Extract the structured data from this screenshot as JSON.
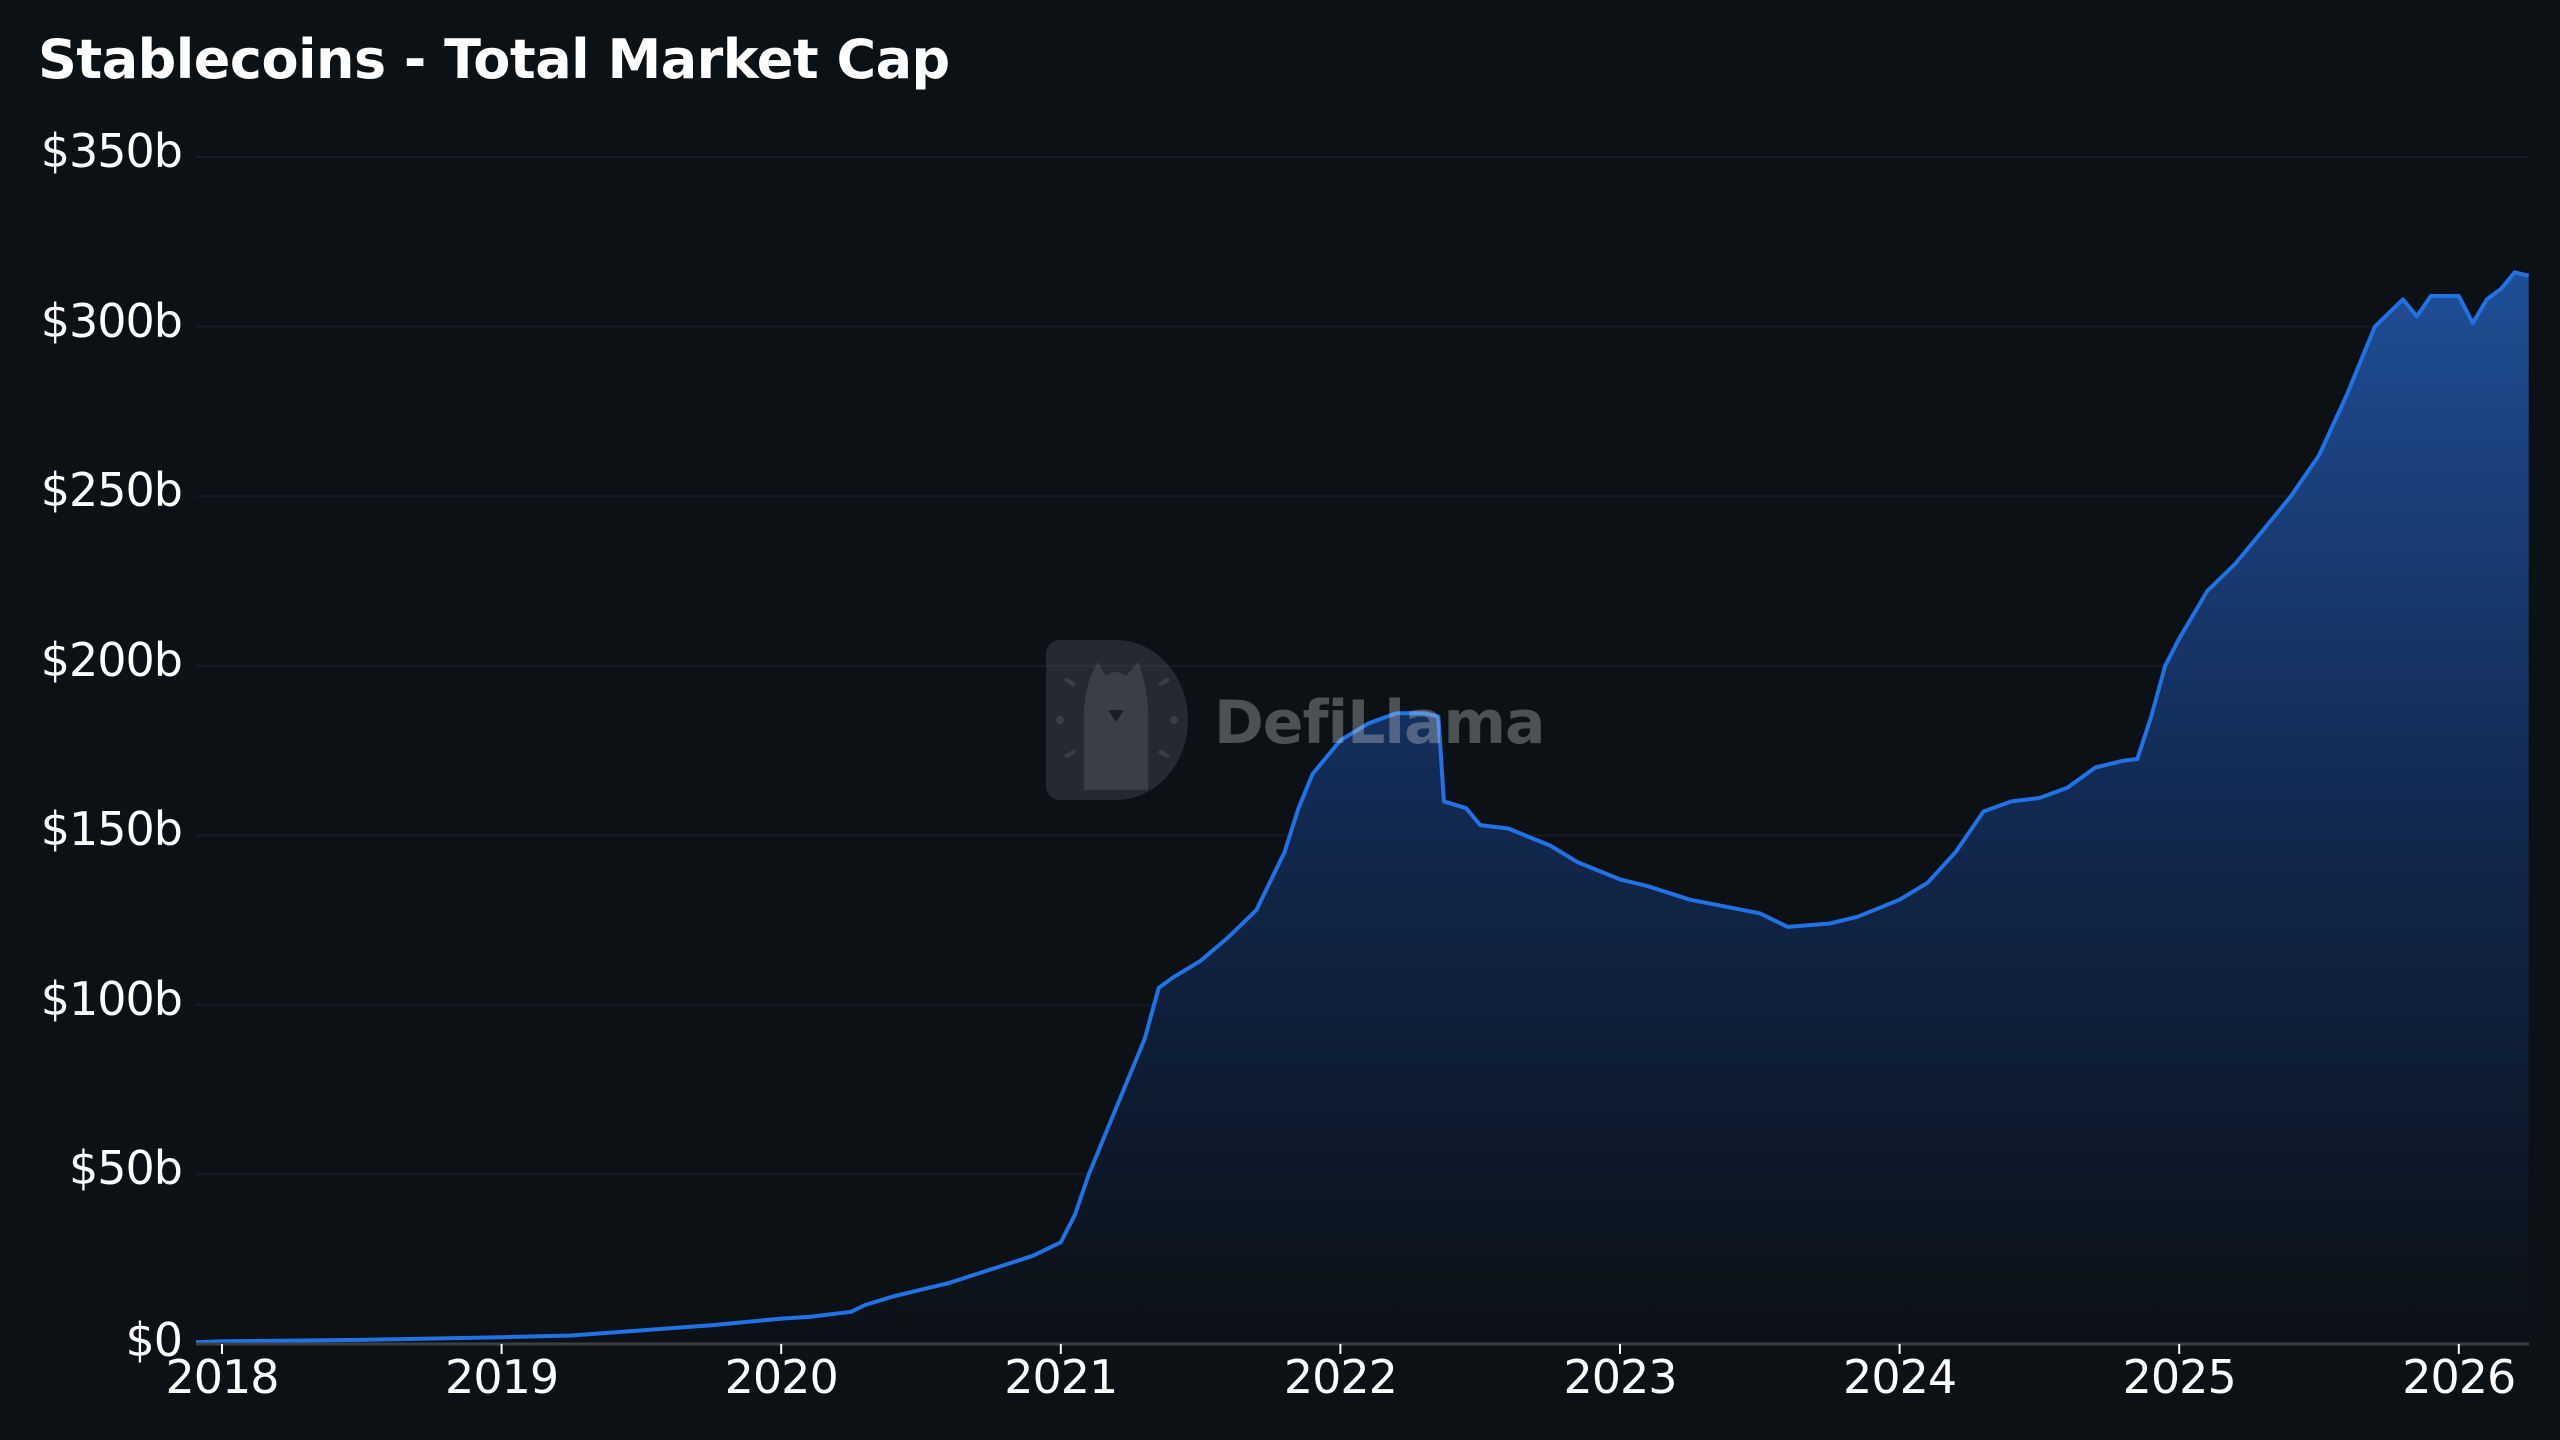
{
  "header": {
    "title": "Stablecoins - Total Market Cap"
  },
  "watermark": {
    "text": "DefiLlama",
    "icon": "llama-logo-icon"
  },
  "colors": {
    "background": "#0b1115",
    "line": "#2172e5",
    "area_top": "#1f4e96",
    "area_bottom": "#0b1115",
    "grid": "#161d22",
    "axis": "#3b4045"
  },
  "y_axis": {
    "labels": [
      "$0",
      "$50b",
      "$100b",
      "$150b",
      "$200b",
      "$250b",
      "$300b",
      "$350b"
    ]
  },
  "x_axis": {
    "labels": [
      "2018",
      "2019",
      "2020",
      "2021",
      "2022",
      "2023",
      "2024",
      "2025",
      "2026"
    ]
  },
  "chart_data": {
    "type": "area",
    "title": "Stablecoins - Total Market Cap",
    "xlabel": "",
    "ylabel": "",
    "ylim": [
      0,
      350
    ],
    "y_unit": "billion USD",
    "y_ticks": [
      0,
      50,
      100,
      150,
      200,
      250,
      300,
      350
    ],
    "x_ticks": [
      "2018",
      "2019",
      "2020",
      "2021",
      "2022",
      "2023",
      "2024",
      "2025",
      "2026"
    ],
    "grid": true,
    "legend": "none",
    "series": [
      {
        "name": "Total Market Cap",
        "x": [
          2017.9,
          2018.0,
          2018.5,
          2019.0,
          2019.25,
          2019.5,
          2019.75,
          2020.0,
          2020.1,
          2020.25,
          2020.3,
          2020.4,
          2020.5,
          2020.6,
          2020.75,
          2020.9,
          2021.0,
          2021.05,
          2021.1,
          2021.2,
          2021.3,
          2021.35,
          2021.4,
          2021.5,
          2021.6,
          2021.7,
          2021.8,
          2021.85,
          2021.9,
          2022.0,
          2022.1,
          2022.2,
          2022.3,
          2022.35,
          2022.37,
          2022.45,
          2022.5,
          2022.6,
          2022.75,
          2022.85,
          2023.0,
          2023.1,
          2023.25,
          2023.5,
          2023.6,
          2023.75,
          2023.85,
          2024.0,
          2024.1,
          2024.2,
          2024.3,
          2024.4,
          2024.5,
          2024.6,
          2024.7,
          2024.8,
          2024.85,
          2024.9,
          2024.95,
          2025.0,
          2025.1,
          2025.2,
          2025.3,
          2025.4,
          2025.5,
          2025.6,
          2025.7,
          2025.8,
          2025.85,
          2025.9,
          2026.0,
          2026.05,
          2026.1,
          2026.15,
          2026.2,
          2026.25
        ],
        "values": [
          0.5,
          0.8,
          1.2,
          2.0,
          2.5,
          4.0,
          5.5,
          7.5,
          8.0,
          9.5,
          11.5,
          14.0,
          16.0,
          18.0,
          22.0,
          26.0,
          30.0,
          38.0,
          50.0,
          70.0,
          90.0,
          105.0,
          108.0,
          113.0,
          120.0,
          128.0,
          145.0,
          158.0,
          168.0,
          178.0,
          183.0,
          186.0,
          186.0,
          185.0,
          160.0,
          158.0,
          153.0,
          152.0,
          147.0,
          142.0,
          137.0,
          135.0,
          131.0,
          127.0,
          123.0,
          124.0,
          126.0,
          131.0,
          136.0,
          145.0,
          157.0,
          160.0,
          161.0,
          164.0,
          170.0,
          172.0,
          172.5,
          185.0,
          200.0,
          208.0,
          222.0,
          230.0,
          240.0,
          250.0,
          262.0,
          280.0,
          300.0,
          308.0,
          303.0,
          309.0,
          309.0,
          301.0,
          308.0,
          311.0,
          316.0,
          315.0
        ]
      }
    ]
  }
}
